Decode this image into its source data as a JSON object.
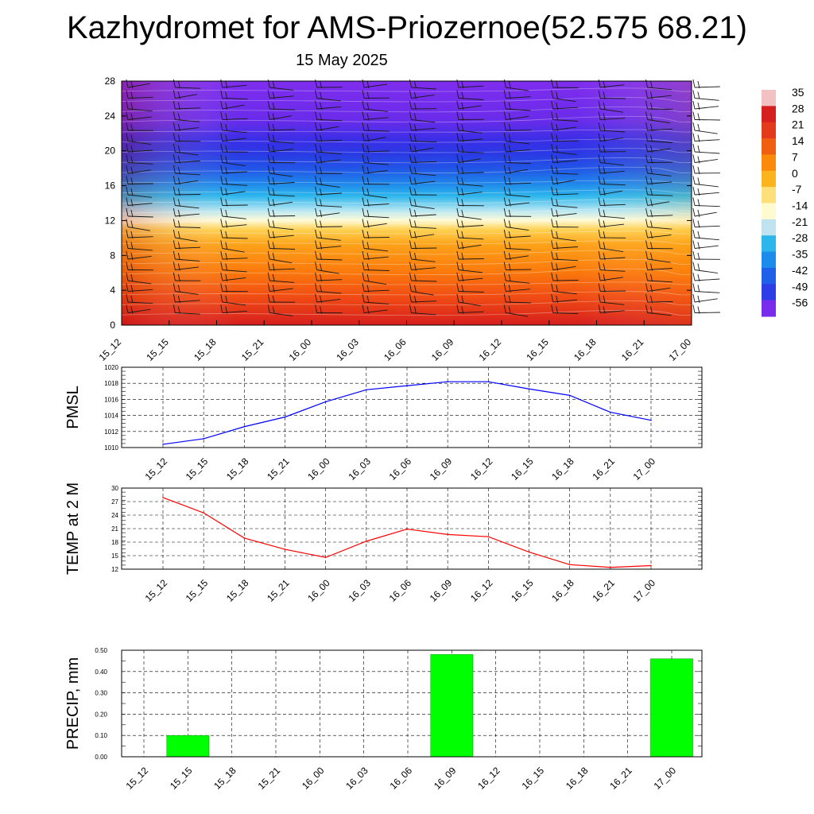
{
  "title": "Kazhydromet for AMS-Priozernoe(52.575 68.21)",
  "date": "15 May 2025",
  "chart_data": [
    {
      "type": "heatmap",
      "y_ticks": [
        0,
        4,
        8,
        12,
        16,
        20,
        24,
        28
      ],
      "ylim": [
        0,
        28
      ],
      "x_tick_labels": [
        "15_12",
        "15_15",
        "15_18",
        "15_21",
        "16_00",
        "16_03",
        "16_06",
        "16_09",
        "16_12",
        "16_15",
        "16_18",
        "16_21",
        "17_00"
      ],
      "colorbar_labels": [
        "35",
        "28",
        "21",
        "14",
        "7",
        "0",
        "-7",
        "-14",
        "-21",
        "-28",
        "-35",
        "-42",
        "-49",
        "-56"
      ],
      "colorbar_colors": [
        "#f2c2c2",
        "#d62020",
        "#e43a1c",
        "#f05f0f",
        "#fb8a0a",
        "#fbb31e",
        "#fde07a",
        "#fffbd0",
        "#bfe4ef",
        "#2cb6ec",
        "#1c8cec",
        "#2060e8",
        "#2e3ee6",
        "#7a2cec"
      ]
    },
    {
      "type": "line",
      "ylabel": "PMSL",
      "x_tick_labels": [
        "15_12",
        "15_15",
        "15_18",
        "15_21",
        "16_00",
        "16_03",
        "16_06",
        "16_09",
        "16_12",
        "16_15",
        "16_18",
        "16_21",
        "17_00"
      ],
      "y_ticks": [
        "1010",
        "1012",
        "1014",
        "1016",
        "1018",
        "1020"
      ],
      "ylim": [
        1010,
        1020
      ],
      "values": [
        1010.4,
        1011.1,
        1012.6,
        1013.8,
        1015.7,
        1017.2,
        1017.7,
        1018.2,
        1018.2,
        1017.3,
        1016.5,
        1014.4,
        1013.4
      ],
      "color": "#0000ff"
    },
    {
      "type": "line",
      "ylabel": "TEMP at 2 M",
      "x_tick_labels": [
        "15_12",
        "15_15",
        "15_18",
        "15_21",
        "16_00",
        "16_03",
        "16_06",
        "16_09",
        "16_12",
        "16_15",
        "16_18",
        "16_21",
        "17_00"
      ],
      "y_ticks": [
        "12",
        "15",
        "18",
        "21",
        "24",
        "27",
        "30"
      ],
      "ylim": [
        12,
        30
      ],
      "values": [
        27.9,
        24.5,
        18.9,
        16.4,
        14.6,
        18.2,
        20.9,
        19.7,
        19.2,
        15.8,
        13.0,
        12.4,
        12.8
      ],
      "color": "#ff0000"
    },
    {
      "type": "bar",
      "ylabel": "PRECIP, mm",
      "categories": [
        "15_12",
        "15_15",
        "15_18",
        "15_21",
        "16_00",
        "16_03",
        "16_06",
        "16_09",
        "16_12",
        "16_15",
        "16_18",
        "16_21",
        "17_00"
      ],
      "y_ticks": [
        "0.00",
        "0.10",
        "0.20",
        "0.30",
        "0.40",
        "0.50"
      ],
      "ylim": [
        0,
        0.5
      ],
      "values": [
        0,
        0.1,
        0,
        0,
        0,
        0,
        0,
        0.48,
        0,
        0,
        0,
        0,
        0.46
      ],
      "color": "#00ff00"
    }
  ]
}
